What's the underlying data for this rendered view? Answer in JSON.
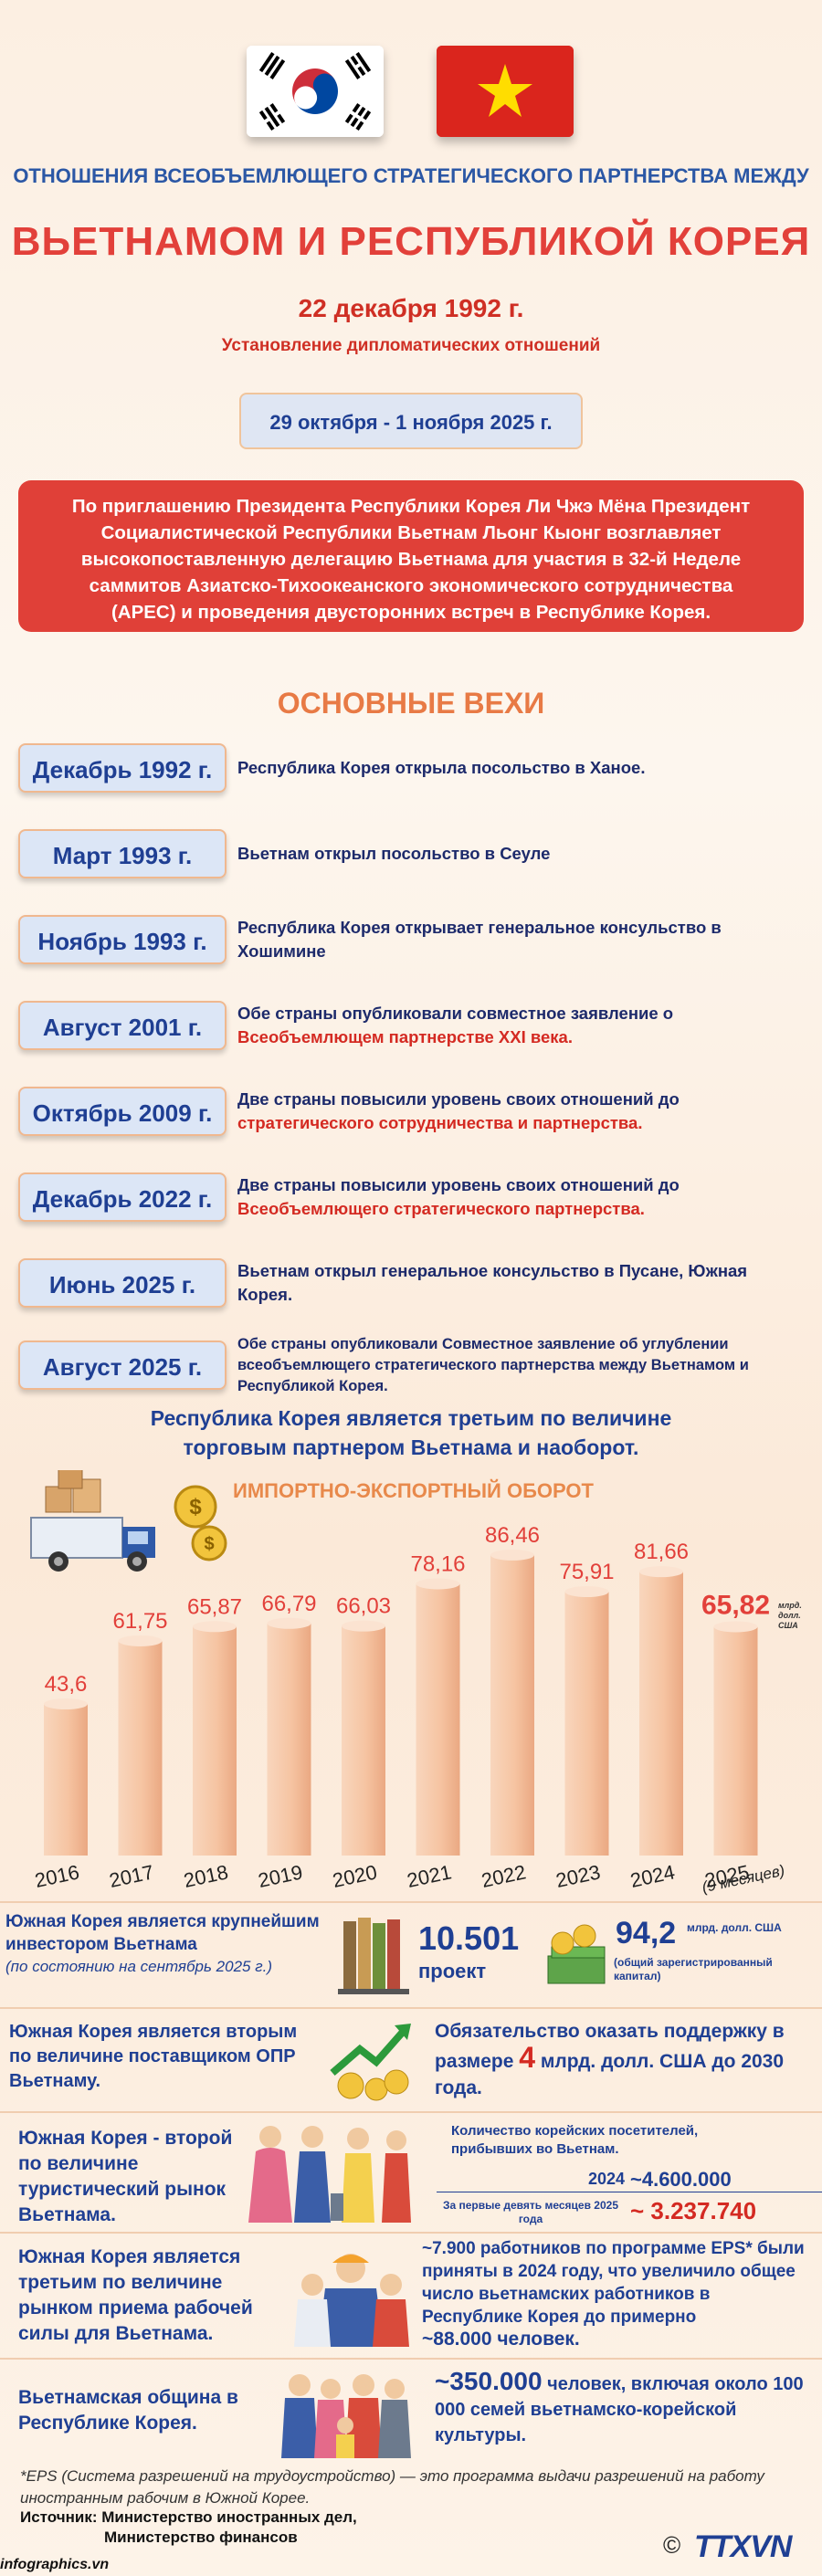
{
  "header": {
    "title_line1": "ОТНОШЕНИЯ ВСЕОБЪЕМЛЮЩЕГО СТРАТЕГИЧЕСКОГО ПАРТНЕРСТВА МЕЖДУ",
    "title_line2": "ВЬЕТНАМОМ И РЕСПУБЛИКОЙ КОРЕЯ",
    "date1": "22 декабря 1992 г.",
    "date1_caption": "Установление дипломатических отношений",
    "date2": "29 октября - 1 ноября 2025 г."
  },
  "intro": {
    "lines": [
      "По приглашению Президента Республики Корея Ли Чжэ Мёна Президент",
      "Социалистической Республики Вьетнам Льонг Кыонг возглавляет",
      "высокопоставленную делегацию Вьетнама для участия в 32-й Неделе",
      "саммитов Азиатско-Тихоокеанского экономического сотрудничества",
      "(APEC) и проведения двусторонних встреч в Республике Корея."
    ]
  },
  "milestones": {
    "title": "ОСНОВНЫЕ ВЕХИ",
    "items": [
      {
        "date": "Декабрь 1992 г.",
        "text": "Республика Корея открыла посольство в Ханое.",
        "highlight": ""
      },
      {
        "date": "Март 1993 г.",
        "text": "Вьетнам открыл посольство в Сеуле",
        "highlight": ""
      },
      {
        "date": "Ноябрь 1993 г.",
        "text": "Республика  Корея открывает генеральное консульство в Хошимине",
        "highlight": ""
      },
      {
        "date": "Август 2001 г.",
        "text": "Обе страны опубликовали совместное заявление о",
        "highlight": "Всеобъемлющем партнерстве XXI века."
      },
      {
        "date": "Октябрь 2009 г.",
        "text": "Две страны повысили уровень своих отношений до",
        "highlight": "стратегического сотрудничества и партнерства."
      },
      {
        "date": "Декабрь 2022 г.",
        "text": "Две страны повысили уровень своих отношений до",
        "highlight": "Всеобъемлющего стратегического партнерства."
      },
      {
        "date": "Июнь 2025 г.",
        "text": "Вьетнам открыл генеральное консульство в Пусане, Южная Корея.",
        "highlight": ""
      },
      {
        "date": "Август 2025 г.",
        "text": "Обе страны опубликовали Совместное заявление об углублении всеобъемлющего стратегического партнерства между Вьетнамом и Республикой Корея.",
        "highlight": ""
      }
    ]
  },
  "trade": {
    "heading_line1": "Республика Корея является третьим по величине",
    "heading_line2": "торговым партнером Вьетнама и наоборот."
  },
  "chart_data": {
    "type": "bar",
    "title": "ИМПОРТНО-ЭКСПОРТНЫЙ ОБОРОТ",
    "categories": [
      "2016",
      "2017",
      "2018",
      "2019",
      "2020",
      "2021",
      "2022",
      "2023",
      "2024",
      "2025"
    ],
    "values": [
      43.6,
      61.75,
      65.87,
      66.79,
      66.03,
      78.16,
      86.46,
      75.91,
      81.66,
      65.82
    ],
    "value_labels": [
      "43,6",
      "61,75",
      "65,87",
      "66,79",
      "66,03",
      "78,16",
      "86,46",
      "75,91",
      "81,66",
      "65,82"
    ],
    "unit": "млрд. долл. США",
    "note_2025": "(9 месяцев)",
    "ylim": [
      0,
      100
    ],
    "bar_color": "#f6c4a2"
  },
  "investor": {
    "text": "Южная Корея является крупнейшим инвестором Вьетнама",
    "subtext": "(по состоянию на сентябрь 2025 г.)",
    "projects_value": "10.501",
    "projects_label": "проект",
    "capital_value": "94,2",
    "capital_unit": "млрд. долл. США",
    "capital_note": "(общий зарегистрированный капитал)"
  },
  "oda": {
    "text": "Южная Корея является вторым по величине поставщиком ОПР Вьетнаму.",
    "commit_before": "Обязательство оказать поддержку в размере",
    "commit_value": "4",
    "commit_after": "млрд. долл. США до 2030 года."
  },
  "tourism": {
    "text": "Южная Корея - второй по величине туристический рынок Вьетнама.",
    "visitors_caption": "Количество корейских посетителей, прибывших во Вьетнам.",
    "year_2024": "2024",
    "value_2024": "~4.600.000",
    "label_2025": "За первые девять месяцев 2025 года",
    "value_2025": "~ 3.237.740"
  },
  "labour": {
    "text": "Южная Корея является третьим по величине рынком приема рабочей силы для Вьетнама.",
    "line1": "~7.900 работников по программе EPS* были приняты в 2024 году, что увеличило общее число вьетнамских работников в Республике Корея до примерно",
    "line2": "~88.000 человек."
  },
  "community": {
    "text": "Вьетнамская община в Республике Корея.",
    "value": "~350.000",
    "line": "человек, включая около 100 000 семей вьетнамско-корейской культуры."
  },
  "footer": {
    "footnote": "*EPS (Система разрешений на трудоустройство) — это программа выдачи разрешений на работу иностранным рабочим в Южной Корее.",
    "source_line1": "Источник: Министерство иностранных дел,",
    "source_line2": "Министерство финансов",
    "brand": "infographics.vn",
    "copyright": "©",
    "logo": "TTXVN"
  },
  "colors": {
    "accent_red": "#e04038",
    "accent_blue": "#1f3f93",
    "accent_orange": "#e8894b"
  }
}
